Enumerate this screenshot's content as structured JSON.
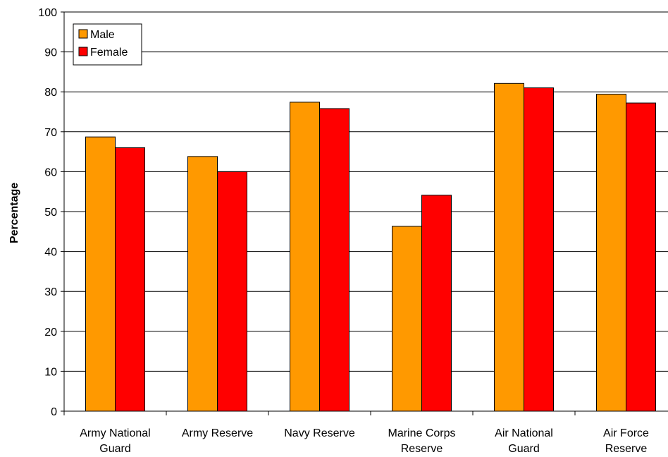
{
  "chart_data": {
    "type": "bar",
    "title": "",
    "xlabel": "",
    "ylabel": "Percentage",
    "ylim": [
      0,
      100
    ],
    "yticks": [
      0,
      10,
      20,
      30,
      40,
      50,
      60,
      70,
      80,
      90,
      100
    ],
    "grid": true,
    "legend_position": "top-left",
    "categories": [
      [
        "Army National",
        "Guard"
      ],
      [
        "Army Reserve"
      ],
      [
        "Navy Reserve"
      ],
      [
        "Marine Corps",
        "Reserve"
      ],
      [
        "Air National",
        "Guard"
      ],
      [
        "Air Force",
        "Reserve"
      ]
    ],
    "series": [
      {
        "name": "Male",
        "color": "#FF9900",
        "values": [
          68.7,
          63.8,
          77.4,
          46.3,
          82.1,
          79.4
        ]
      },
      {
        "name": "Female",
        "color": "#FF0000",
        "values": [
          66.0,
          60.0,
          75.8,
          54.1,
          81.0,
          77.2
        ]
      }
    ]
  }
}
